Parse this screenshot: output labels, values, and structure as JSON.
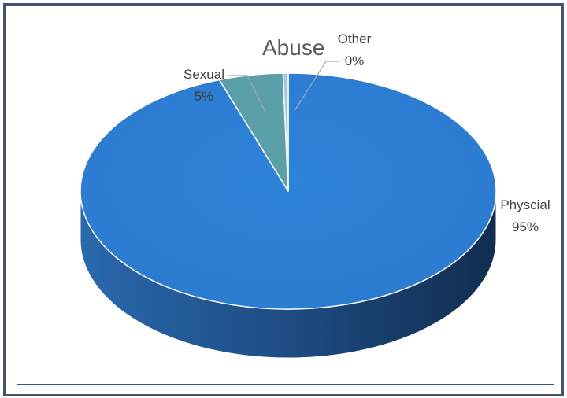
{
  "chart_data": {
    "type": "pie",
    "style": "3d",
    "title": "Abuse",
    "slices": [
      {
        "label": "Physcial",
        "value": 95,
        "display": "95%",
        "color": "#2e7fd6",
        "side_color": "#1f5a9e"
      },
      {
        "label": "Sexual",
        "value": 5,
        "display": "5%",
        "color": "#5b9fa8",
        "side_color": "#3e7479"
      },
      {
        "label": "Other",
        "value": 0.4,
        "display": "0%",
        "color": "#a9c5de",
        "side_color": "#7f98ae"
      }
    ],
    "legend": "none",
    "frame_color": "#44546a"
  }
}
